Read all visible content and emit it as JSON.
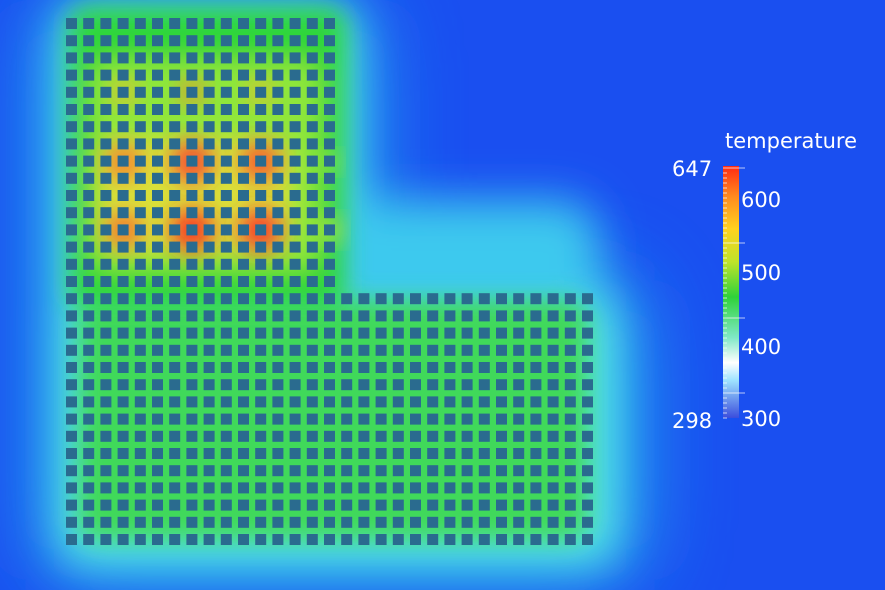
{
  "legend": {
    "title": "temperature",
    "max_label": "647",
    "min_label": "298",
    "ticks": [
      {
        "label": "600",
        "value": 600
      },
      {
        "label": "500",
        "value": 500
      },
      {
        "label": "400",
        "value": 400
      },
      {
        "label": "300",
        "value": 300
      }
    ],
    "range": [
      298,
      647
    ],
    "colormap": [
      "#3b4ddd",
      "#9fe3ff",
      "#ffffff",
      "#7fe8c6",
      "#2fd23a",
      "#bfe32a",
      "#ffd21f",
      "#ff8a1f",
      "#ff2a12"
    ]
  },
  "heatmap": {
    "background_color": "#1a4ff0",
    "hotspot_color": "#ff2e2e",
    "grid_color": "#2a6b8f"
  }
}
